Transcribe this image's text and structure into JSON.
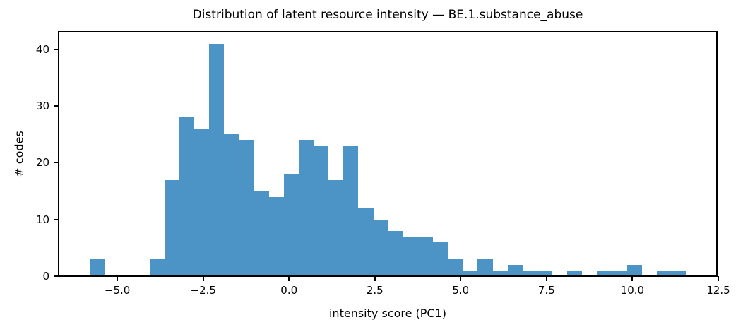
{
  "figure": {
    "background_color": "#ffffff",
    "text_color": "#000000"
  },
  "chart_data": {
    "type": "bar",
    "subtype": "histogram",
    "title": "Distribution of latent resource intensity — BE.1.substance_abuse",
    "xlabel": "intensity score (PC1)",
    "ylabel": "# codes",
    "bar_color": "#4c93c6",
    "spine_color": "#000000",
    "grid": false,
    "legend": null,
    "bin_start": -5.8,
    "bin_width": 0.4345,
    "counts": [
      3,
      0,
      0,
      0,
      3,
      17,
      28,
      26,
      41,
      25,
      24,
      15,
      14,
      18,
      24,
      23,
      17,
      23,
      12,
      10,
      8,
      7,
      7,
      6,
      3,
      1,
      3,
      1,
      2,
      1,
      1,
      0,
      1,
      0,
      1,
      1,
      2,
      0,
      1,
      1
    ],
    "xlim": [
      -6.71,
      12.46
    ],
    "ylim": [
      0,
      43.1
    ],
    "xticks": [
      {
        "value": -5.0,
        "label": "−5.0"
      },
      {
        "value": -2.5,
        "label": "−2.5"
      },
      {
        "value": 0.0,
        "label": "0.0"
      },
      {
        "value": 2.5,
        "label": "2.5"
      },
      {
        "value": 5.0,
        "label": "5.0"
      },
      {
        "value": 7.5,
        "label": "7.5"
      },
      {
        "value": 10.0,
        "label": "10.0"
      },
      {
        "value": 12.5,
        "label": "12.5"
      }
    ],
    "yticks": [
      {
        "value": 0,
        "label": "0"
      },
      {
        "value": 10,
        "label": "10"
      },
      {
        "value": 20,
        "label": "20"
      },
      {
        "value": 30,
        "label": "30"
      },
      {
        "value": 40,
        "label": "40"
      }
    ]
  }
}
